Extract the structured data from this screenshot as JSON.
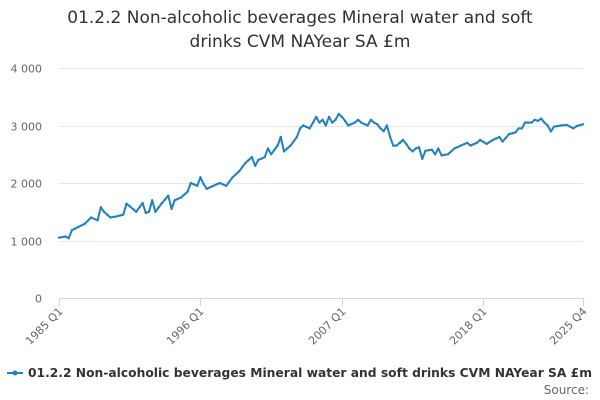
{
  "chart_data": {
    "type": "line",
    "title_line1": "01.2.2 Non-alcoholic beverages Mineral water and soft",
    "title_line2": "drinks CVM NAYear SA £m",
    "xlabel": "",
    "ylabel": "",
    "ylim": [
      0,
      4000
    ],
    "yticks": [
      {
        "value": 0,
        "label": "0"
      },
      {
        "value": 1000,
        "label": "1 000"
      },
      {
        "value": 2000,
        "label": "2 000"
      },
      {
        "value": 3000,
        "label": "3 000"
      },
      {
        "value": 4000,
        "label": "4 000"
      }
    ],
    "x_start": {
      "year": 1985,
      "quarter": 1
    },
    "x_end": {
      "year": 2025,
      "quarter": 4
    },
    "xticks": [
      {
        "label": "1985 Q1",
        "index": 0
      },
      {
        "label": "1996 Q1",
        "index": 44
      },
      {
        "label": "2007 Q1",
        "index": 88
      },
      {
        "label": "2018 Q1",
        "index": 132
      },
      {
        "label": "2025 Q4",
        "index": 163
      }
    ],
    "anchors": [
      [
        0,
        1050
      ],
      [
        2,
        1070
      ],
      [
        3,
        1040
      ],
      [
        4,
        1180
      ],
      [
        8,
        1290
      ],
      [
        10,
        1400
      ],
      [
        12,
        1350
      ],
      [
        13,
        1580
      ],
      [
        14,
        1500
      ],
      [
        16,
        1400
      ],
      [
        18,
        1420
      ],
      [
        20,
        1450
      ],
      [
        21,
        1640
      ],
      [
        23,
        1550
      ],
      [
        24,
        1500
      ],
      [
        26,
        1650
      ],
      [
        27,
        1480
      ],
      [
        28,
        1500
      ],
      [
        29,
        1700
      ],
      [
        30,
        1500
      ],
      [
        32,
        1650
      ],
      [
        34,
        1780
      ],
      [
        35,
        1550
      ],
      [
        36,
        1700
      ],
      [
        38,
        1750
      ],
      [
        40,
        1850
      ],
      [
        41,
        2000
      ],
      [
        43,
        1950
      ],
      [
        44,
        2100
      ],
      [
        45,
        1980
      ],
      [
        46,
        1900
      ],
      [
        48,
        1950
      ],
      [
        50,
        2000
      ],
      [
        52,
        1950
      ],
      [
        54,
        2100
      ],
      [
        56,
        2200
      ],
      [
        58,
        2350
      ],
      [
        60,
        2450
      ],
      [
        61,
        2300
      ],
      [
        62,
        2400
      ],
      [
        64,
        2450
      ],
      [
        65,
        2600
      ],
      [
        66,
        2500
      ],
      [
        68,
        2650
      ],
      [
        69,
        2800
      ],
      [
        70,
        2550
      ],
      [
        72,
        2650
      ],
      [
        74,
        2800
      ],
      [
        75,
        2950
      ],
      [
        76,
        3000
      ],
      [
        78,
        2950
      ],
      [
        79,
        3050
      ],
      [
        80,
        3150
      ],
      [
        81,
        3050
      ],
      [
        82,
        3100
      ],
      [
        83,
        3000
      ],
      [
        84,
        3150
      ],
      [
        85,
        3050
      ],
      [
        86,
        3100
      ],
      [
        87,
        3200
      ],
      [
        88,
        3150
      ],
      [
        89,
        3080
      ],
      [
        90,
        3000
      ],
      [
        92,
        3050
      ],
      [
        93,
        3100
      ],
      [
        94,
        3050
      ],
      [
        96,
        3000
      ],
      [
        97,
        3100
      ],
      [
        98,
        3050
      ],
      [
        99,
        3020
      ],
      [
        100,
        2950
      ],
      [
        101,
        2900
      ],
      [
        102,
        3000
      ],
      [
        103,
        2800
      ],
      [
        104,
        2650
      ],
      [
        105,
        2650
      ],
      [
        106,
        2700
      ],
      [
        107,
        2750
      ],
      [
        108,
        2680
      ],
      [
        109,
        2600
      ],
      [
        110,
        2550
      ],
      [
        111,
        2600
      ],
      [
        112,
        2620
      ],
      [
        113,
        2420
      ],
      [
        114,
        2560
      ],
      [
        116,
        2580
      ],
      [
        117,
        2500
      ],
      [
        118,
        2600
      ],
      [
        119,
        2480
      ],
      [
        121,
        2500
      ],
      [
        123,
        2600
      ],
      [
        125,
        2650
      ],
      [
        127,
        2700
      ],
      [
        128,
        2650
      ],
      [
        130,
        2700
      ],
      [
        131,
        2750
      ],
      [
        133,
        2680
      ],
      [
        135,
        2750
      ],
      [
        137,
        2800
      ],
      [
        138,
        2720
      ],
      [
        140,
        2850
      ],
      [
        142,
        2880
      ],
      [
        143,
        2950
      ],
      [
        144,
        2950
      ],
      [
        145,
        3050
      ],
      [
        147,
        3050
      ],
      [
        148,
        3100
      ],
      [
        149,
        3080
      ],
      [
        150,
        3120
      ],
      [
        151,
        3050
      ],
      [
        152,
        3000
      ],
      [
        153,
        2900
      ],
      [
        154,
        2980
      ],
      [
        156,
        3000
      ],
      [
        158,
        3010
      ],
      [
        160,
        2950
      ],
      [
        161,
        2990
      ],
      [
        163,
        3020
      ]
    ],
    "series": [
      {
        "name": "01.2.2 Non-alcoholic beverages Mineral water and soft drinks CVM NAYear SA £m",
        "color": "#1f82c0"
      }
    ]
  },
  "source_label": "Source:"
}
